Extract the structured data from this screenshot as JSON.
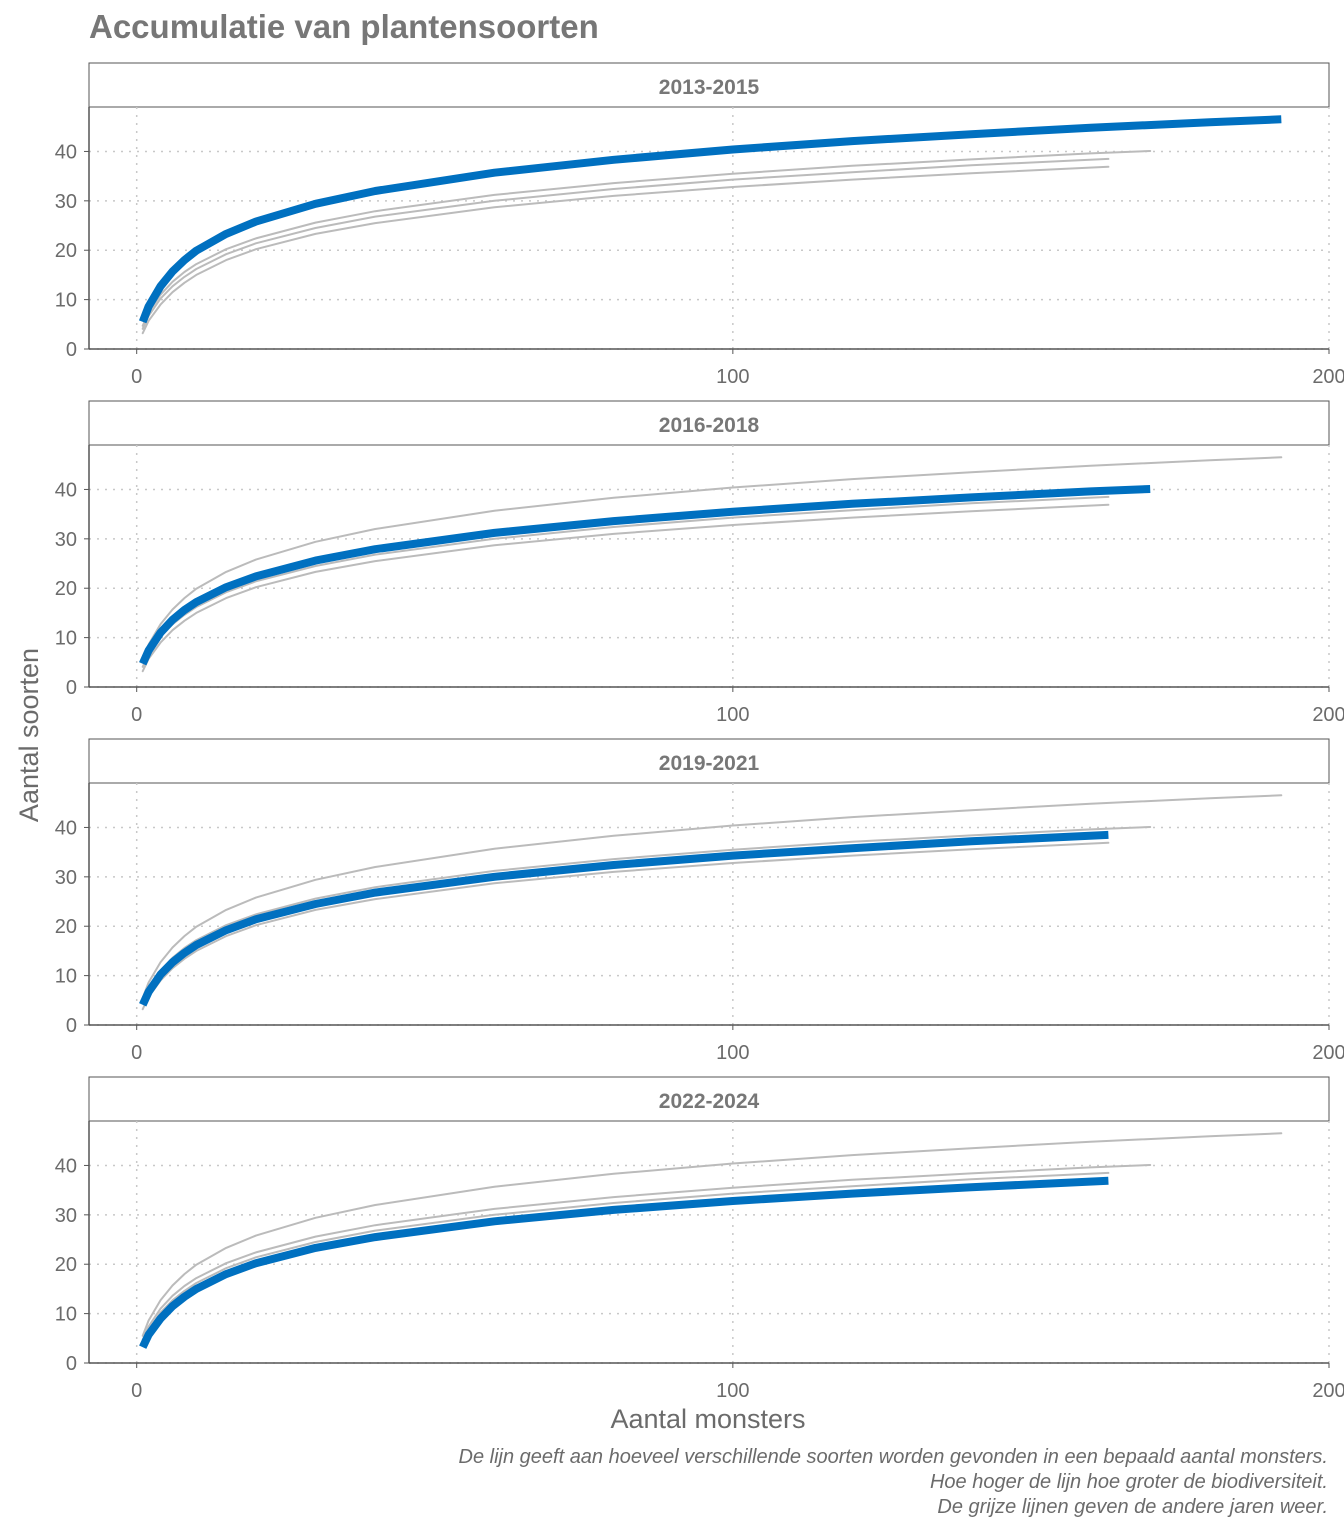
{
  "title": "Accumulatie van plantensoorten",
  "xlabel": "Aantal monsters",
  "ylabel": "Aantal soorten",
  "caption": [
    "De lijn geeft aan hoeveel verschillende soorten worden gevonden in een bepaald aantal monsters.",
    "Hoe hoger de lijn hoe groter de biodiversiteit.",
    "De grijze lijnen geven de andere jaren weer."
  ],
  "colors": {
    "highlight": "#0070C0",
    "other": "#BBBBBB",
    "text": "#6b6b6b",
    "title": "#777777"
  },
  "chart_data": {
    "type": "line",
    "layout": "4 stacked facets, one per period; in each facet the period's curve is highlighted and the other periods are shown as grey lines",
    "facets": [
      "2013-2015",
      "2016-2018",
      "2019-2021",
      "2022-2024"
    ],
    "xlim": [
      -8,
      200
    ],
    "ylim": [
      0,
      49
    ],
    "x_ticks": [
      0,
      100,
      200
    ],
    "y_ticks": [
      0,
      10,
      20,
      30,
      40
    ],
    "grid": true,
    "series": [
      {
        "name": "2013-2015",
        "x": [
          1,
          2,
          4,
          6,
          8,
          10,
          15,
          20,
          30,
          40,
          60,
          80,
          100,
          120,
          140,
          160,
          180,
          192
        ],
        "y": [
          5.5,
          8.6,
          12.7,
          15.7,
          18.0,
          19.9,
          23.3,
          25.8,
          29.4,
          32.0,
          35.7,
          38.3,
          40.4,
          42.1,
          43.5,
          44.8,
          45.9,
          46.5
        ]
      },
      {
        "name": "2016-2018",
        "x": [
          1,
          2,
          4,
          6,
          8,
          10,
          15,
          20,
          30,
          40,
          60,
          80,
          100,
          120,
          140,
          160,
          170
        ],
        "y": [
          4.7,
          7.4,
          11.0,
          13.6,
          15.6,
          17.2,
          20.2,
          22.4,
          25.6,
          27.9,
          31.2,
          33.6,
          35.5,
          37.1,
          38.4,
          39.6,
          40.1
        ]
      },
      {
        "name": "2019-2021",
        "x": [
          1,
          2,
          4,
          6,
          8,
          10,
          15,
          20,
          30,
          40,
          60,
          80,
          100,
          120,
          140,
          163
        ],
        "y": [
          4.1,
          6.7,
          10.2,
          12.7,
          14.6,
          16.2,
          19.2,
          21.4,
          24.5,
          26.8,
          30.0,
          32.4,
          34.3,
          35.8,
          37.2,
          38.5
        ]
      },
      {
        "name": "2022-2024",
        "x": [
          1,
          2,
          4,
          6,
          8,
          10,
          15,
          20,
          30,
          40,
          60,
          80,
          100,
          120,
          140,
          163
        ],
        "y": [
          3.2,
          5.7,
          9.0,
          11.5,
          13.4,
          15.0,
          18.0,
          20.2,
          23.3,
          25.5,
          28.7,
          31.0,
          32.8,
          34.3,
          35.6,
          36.9
        ]
      }
    ]
  }
}
